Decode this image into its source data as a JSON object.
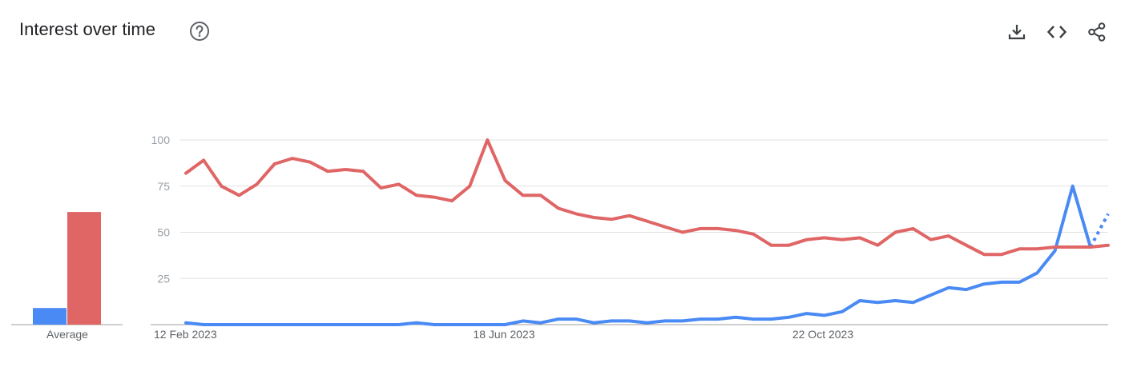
{
  "header": {
    "title": "Interest over time",
    "help_icon": "help-circle-icon",
    "toolbar": [
      {
        "name": "download",
        "icon": "download-icon"
      },
      {
        "name": "embed",
        "icon": "code-icon"
      },
      {
        "name": "share",
        "icon": "share-icon"
      }
    ]
  },
  "chart_data": {
    "type": "line",
    "title": "Interest over time",
    "ylim": [
      0,
      100
    ],
    "yticks": [
      "25",
      "50",
      "75",
      "100"
    ],
    "xtick_labels": [
      "12 Feb 2023",
      "18 Jun 2023",
      "22 Oct 2023"
    ],
    "grid": true,
    "average_label": "Average",
    "colors": {
      "series_1": "#4a8af4",
      "series_2": "#e06666",
      "grid": "#e0e0e0",
      "axis": "#9e9e9e"
    },
    "series": [
      {
        "color": "#4a8af4",
        "average": 9,
        "values": [
          1,
          0,
          0,
          0,
          0,
          0,
          0,
          0,
          0,
          0,
          0,
          0,
          0,
          1,
          0,
          0,
          0,
          0,
          0,
          2,
          1,
          3,
          3,
          1,
          2,
          2,
          1,
          2,
          2,
          3,
          3,
          4,
          3,
          3,
          4,
          6,
          5,
          7,
          13,
          12,
          13,
          12,
          16,
          20,
          19,
          22,
          23,
          23,
          28,
          40,
          75,
          42
        ],
        "partial_values": [
          42,
          60
        ]
      },
      {
        "color": "#e06666",
        "average": 61,
        "values": [
          82,
          89,
          75,
          70,
          76,
          87,
          90,
          88,
          83,
          84,
          83,
          74,
          76,
          70,
          69,
          67,
          75,
          100,
          78,
          70,
          70,
          63,
          60,
          58,
          57,
          59,
          56,
          53,
          50,
          52,
          52,
          51,
          49,
          43,
          43,
          46,
          47,
          46,
          47,
          43,
          50,
          52,
          46,
          48,
          43,
          38,
          38,
          41,
          41,
          42,
          42,
          42,
          43
        ]
      }
    ]
  }
}
